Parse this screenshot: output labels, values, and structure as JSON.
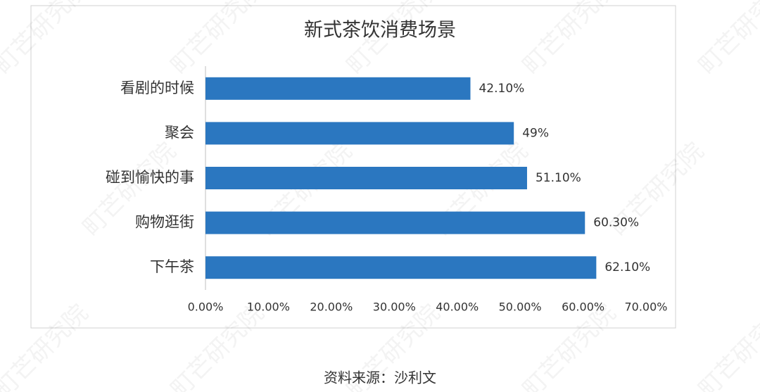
{
  "chart_data": {
    "type": "bar",
    "orientation": "horizontal",
    "title": "新式茶饮消费场景",
    "categories": [
      "看剧的时候",
      "聚会",
      "碰到愉快的事",
      "购物逛街",
      "下午茶"
    ],
    "values": [
      42.1,
      49,
      51.1,
      60.3,
      62.1
    ],
    "value_labels": [
      "42.10%",
      "49%",
      "51.10%",
      "60.30%",
      "62.10%"
    ],
    "color": "#2b77c0",
    "xlim": [
      0,
      70
    ],
    "xticks": [
      {
        "value": 0,
        "label": "0.00%"
      },
      {
        "value": 10,
        "label": "10.00%"
      },
      {
        "value": 20,
        "label": "20.00%"
      },
      {
        "value": 30,
        "label": "30.00%"
      },
      {
        "value": 40,
        "label": "40.00%"
      },
      {
        "value": 50,
        "label": "50.00%"
      },
      {
        "value": 60,
        "label": "60.00%"
      },
      {
        "value": 70,
        "label": "70.00%"
      }
    ],
    "source": "资料来源：沙利文",
    "watermark": "町芒研究院"
  }
}
